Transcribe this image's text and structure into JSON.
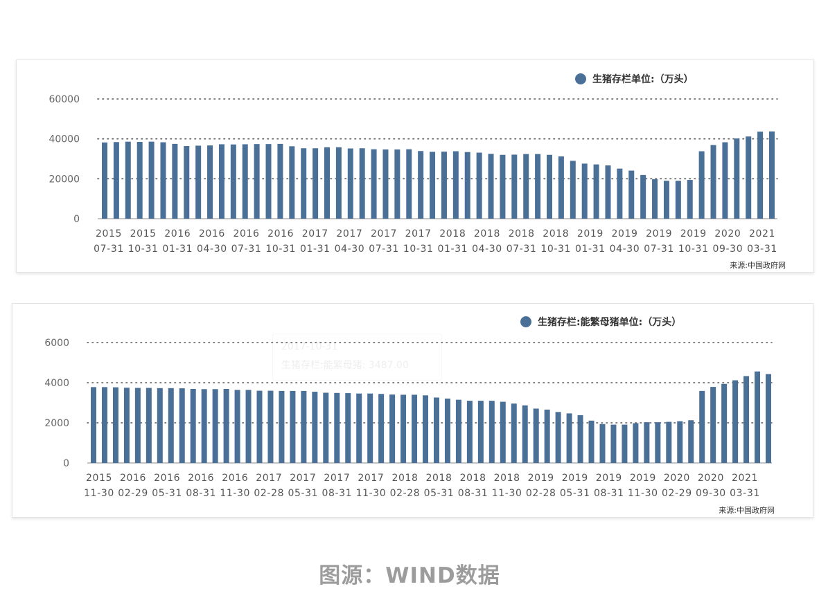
{
  "chart_data": [
    {
      "type": "bar",
      "legend": "生猪存栏单位:（万头）",
      "legend_placement": "top-right",
      "source": "来源:中国政府网",
      "color": "#4a7097",
      "grid": "dotted horizontal",
      "ylim": [
        0,
        60000
      ],
      "yticks": [
        "0",
        "20000",
        "40000",
        "60000"
      ],
      "x_label_years": [
        "2015",
        "2015",
        "2016",
        "2016",
        "2016",
        "2016",
        "2017",
        "2017",
        "2017",
        "2017",
        "2018",
        "2018",
        "2018",
        "2018",
        "2019",
        "2019",
        "2019",
        "2019",
        "2020",
        "2021"
      ],
      "x_label_dates": [
        "07-31",
        "10-31",
        "01-31",
        "04-30",
        "07-31",
        "10-31",
        "01-31",
        "04-30",
        "07-31",
        "10-31",
        "01-31",
        "04-30",
        "07-31",
        "10-31",
        "01-31",
        "04-30",
        "07-31",
        "10-31",
        "09-30",
        "03-31"
      ],
      "values": [
        38200,
        38400,
        38600,
        38500,
        38600,
        38300,
        37500,
        36400,
        36600,
        36700,
        37300,
        37200,
        37300,
        37400,
        37400,
        37500,
        36300,
        35300,
        35300,
        35800,
        35800,
        35200,
        35300,
        34800,
        34700,
        34700,
        34800,
        33900,
        33500,
        33600,
        33800,
        33400,
        33100,
        32500,
        32000,
        32100,
        32400,
        32400,
        32000,
        31200,
        29000,
        27600,
        27200,
        26700,
        25100,
        24100,
        21900,
        19800,
        19000,
        19000,
        19400,
        33800,
        36900,
        38300,
        40200,
        41200,
        43600,
        43700
      ]
    },
    {
      "type": "bar",
      "legend": "生猪存栏:能繁母猪单位:（万头）",
      "legend_placement": "top-right",
      "source": "来源:中国政府网",
      "color": "#4a7097",
      "grid": "dotted horizontal",
      "ylim": [
        0,
        6000
      ],
      "yticks": [
        "0",
        "2000",
        "4000",
        "6000"
      ],
      "x_label_years": [
        "2015",
        "2016",
        "2016",
        "2016",
        "2016",
        "2017",
        "2017",
        "2017",
        "2017",
        "2018",
        "2018",
        "2018",
        "2018",
        "2019",
        "2019",
        "2019",
        "2019",
        "2020",
        "2020",
        "2021"
      ],
      "x_label_dates": [
        "11-30",
        "02-29",
        "05-31",
        "08-31",
        "11-30",
        "02-28",
        "05-31",
        "08-31",
        "11-30",
        "02-28",
        "05-31",
        "08-31",
        "11-30",
        "02-28",
        "05-31",
        "08-31",
        "11-30",
        "02-29",
        "09-30",
        "03-31"
      ],
      "values": [
        3780,
        3780,
        3770,
        3750,
        3740,
        3740,
        3730,
        3730,
        3720,
        3690,
        3680,
        3680,
        3690,
        3640,
        3640,
        3600,
        3600,
        3590,
        3590,
        3590,
        3550,
        3500,
        3490,
        3480,
        3460,
        3460,
        3440,
        3410,
        3400,
        3400,
        3370,
        3260,
        3210,
        3150,
        3100,
        3100,
        3100,
        3050,
        2960,
        2870,
        2710,
        2660,
        2540,
        2470,
        2380,
        2110,
        1940,
        1910,
        1910,
        1980,
        2030,
        2030,
        2050,
        2080,
        2130,
        3590,
        3790,
        3940,
        4120,
        4330,
        4560,
        4430
      ]
    },
    {
      "type": "tooltip-ghost",
      "lines": [
        "2017-10-31",
        "生猪存栏:能繁母猪: 3487.00"
      ]
    }
  ],
  "footer": {
    "text": "图源：WIND数据"
  }
}
